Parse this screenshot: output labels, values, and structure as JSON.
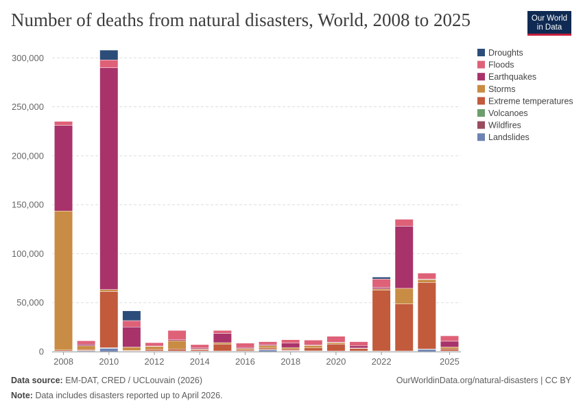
{
  "title": "Number of deaths from natural disasters, World, 2008 to 2025",
  "logo": {
    "line1": "Our World",
    "line2": "in Data"
  },
  "footer": {
    "source_label": "Data source:",
    "source_text": "EM-DAT, CRED / UCLouvain (2026)",
    "note_label": "Note:",
    "note_text": "Data includes disasters reported up to April 2026.",
    "right_text": "OurWorldinData.org/natural-disasters | CC BY"
  },
  "chart_data": {
    "type": "bar",
    "stacked": true,
    "categories": [
      "2008",
      "2009",
      "2010",
      "2011",
      "2012",
      "2013",
      "2014",
      "2015",
      "2016",
      "2017",
      "2018",
      "2019",
      "2020",
      "2021",
      "2022",
      "2023",
      "2024",
      "2025"
    ],
    "x_tick_labels": [
      "2008",
      "2010",
      "2012",
      "2014",
      "2016",
      "2018",
      "2020",
      "2022",
      "2025"
    ],
    "y_ticks": [
      0,
      50000,
      100000,
      150000,
      200000,
      250000,
      300000
    ],
    "y_tick_labels": [
      "0",
      "50,000",
      "100,000",
      "150,000",
      "200,000",
      "250,000",
      "300,000"
    ],
    "ylim": [
      0,
      310000
    ],
    "grid": true,
    "legend_position": "right",
    "series": [
      {
        "name": "Landslides",
        "color": "#6d83b4",
        "values": [
          500,
          800,
          3500,
          500,
          500,
          500,
          500,
          500,
          500,
          2000,
          500,
          500,
          500,
          500,
          500,
          500,
          2500,
          500
        ]
      },
      {
        "name": "Wildfires",
        "color": "#9a4b5d",
        "values": [
          100,
          200,
          100,
          100,
          100,
          100,
          100,
          100,
          100,
          100,
          200,
          100,
          100,
          100,
          100,
          100,
          100,
          100
        ]
      },
      {
        "name": "Volcanoes",
        "color": "#6b9e6c",
        "values": [
          0,
          0,
          300,
          0,
          0,
          0,
          0,
          0,
          0,
          0,
          400,
          100,
          0,
          0,
          0,
          0,
          0,
          0
        ]
      },
      {
        "name": "Extreme temperatures",
        "color": "#c25a3c",
        "values": [
          1000,
          1000,
          57500,
          500,
          1500,
          2000,
          1500,
          7000,
          1000,
          1500,
          1500,
          3000,
          7000,
          2500,
          62000,
          48000,
          68000,
          2000
        ]
      },
      {
        "name": "Storms",
        "color": "#c98c44",
        "values": [
          142000,
          4000,
          2000,
          3500,
          3000,
          8500,
          500,
          1500,
          1500,
          2500,
          1500,
          2500,
          1500,
          500,
          1500,
          16000,
          3000,
          2000
        ]
      },
      {
        "name": "Earthquakes",
        "color": "#a8336a",
        "values": [
          87500,
          1500,
          226500,
          20500,
          500,
          1000,
          1000,
          9500,
          1000,
          1000,
          4500,
          500,
          500,
          2500,
          1500,
          63500,
          500,
          6000
        ]
      },
      {
        "name": "Floods",
        "color": "#de6178",
        "values": [
          4000,
          3500,
          8000,
          6500,
          3500,
          9500,
          3500,
          3000,
          4500,
          3000,
          3500,
          5000,
          6000,
          4000,
          8500,
          7000,
          6000,
          5500
        ]
      },
      {
        "name": "Droughts",
        "color": "#2c4d7a",
        "values": [
          0,
          0,
          10000,
          10000,
          0,
          0,
          0,
          0,
          0,
          0,
          0,
          0,
          0,
          0,
          2000,
          0,
          0,
          0
        ]
      }
    ],
    "legend_order": [
      "Droughts",
      "Floods",
      "Earthquakes",
      "Storms",
      "Extreme temperatures",
      "Volcanoes",
      "Wildfires",
      "Landslides"
    ]
  }
}
